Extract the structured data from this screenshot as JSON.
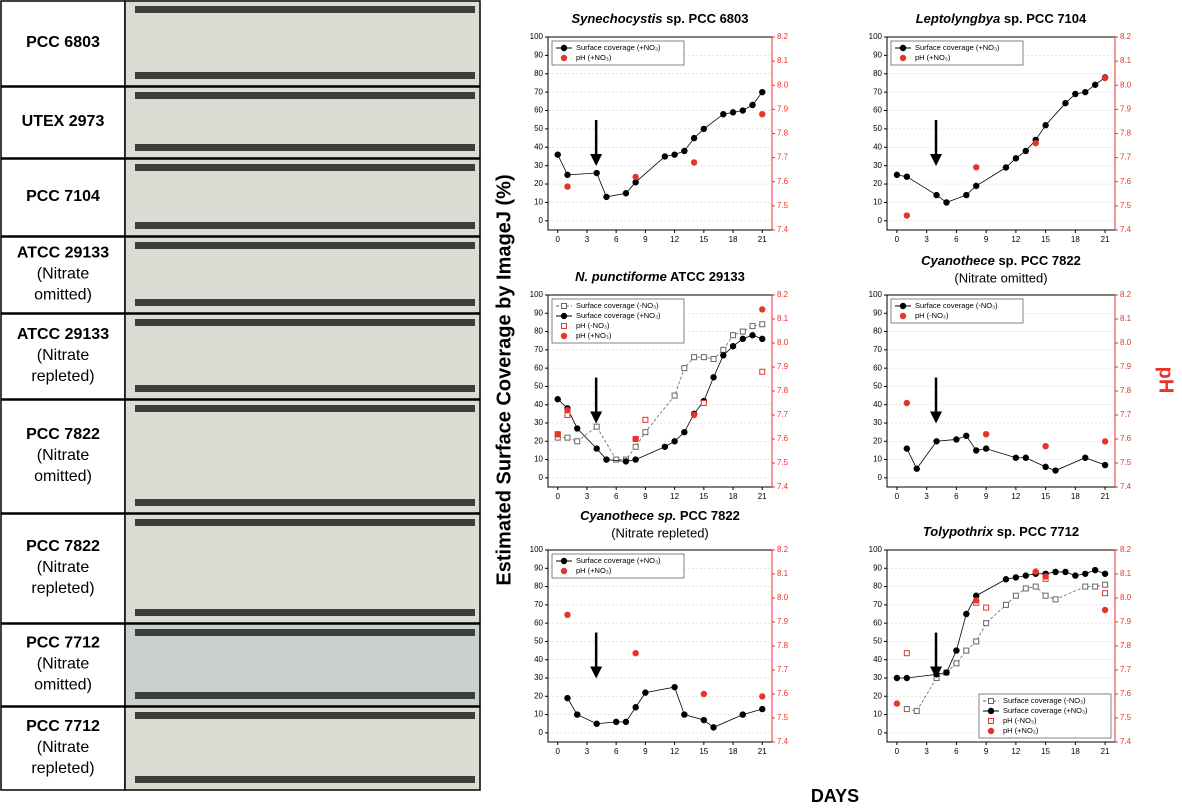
{
  "strains": [
    [
      "PCC 6803"
    ],
    [
      "UTEX 2973"
    ],
    [
      "PCC 7104"
    ],
    [
      "ATCC 29133",
      "(Nitrate",
      "omitted)"
    ],
    [
      "ATCC 29133",
      "(Nitrate",
      "repleted)"
    ],
    [
      "PCC 7822",
      "(Nitrate",
      "omitted)"
    ],
    [
      "PCC 7822",
      "(Nitrate",
      "repleted)"
    ],
    [
      "PCC 7712",
      "(Nitrate",
      "omitted)"
    ],
    [
      "PCC 7712",
      "(Nitrate",
      "repleted)"
    ]
  ],
  "y_axis_label": "Estimated Surface Coverage by ImageJ (%)",
  "y2_axis_label": "pH",
  "x_axis_label": "DAYS",
  "chart_data": [
    {
      "type": "line",
      "title": [
        "Synechocystis",
        " sp. PCC 6803"
      ],
      "legend": "upper left",
      "grid": true,
      "xlim": [
        -1,
        22
      ],
      "xticks": [
        0,
        3,
        6,
        9,
        12,
        15,
        18,
        21
      ],
      "ylim": [
        -5,
        100
      ],
      "yticks": [
        0,
        10,
        20,
        30,
        40,
        50,
        60,
        70,
        80,
        90,
        100
      ],
      "y2lim": [
        7.4,
        8.2
      ],
      "y2ticks": [
        7.4,
        7.5,
        7.6,
        7.7,
        7.8,
        7.9,
        {
          "value": 8,
          "label": "8.0"
        },
        8.1,
        8.2
      ],
      "series": [
        {
          "name": "Surface coverage (+NO₃)",
          "color": "#000000",
          "marker": "circle",
          "filled": true,
          "line": true,
          "dashed": false,
          "x": [
            0,
            1,
            4,
            5,
            7,
            8,
            11,
            12,
            13,
            14,
            15,
            17,
            18,
            19,
            20,
            21
          ],
          "values": [
            36,
            25,
            26,
            13,
            15,
            21,
            35,
            36,
            38,
            45,
            50,
            58,
            59,
            60,
            63,
            70
          ]
        },
        {
          "name": "pH (+NO₃)",
          "color": "#e8322b",
          "marker": "circle",
          "filled": true,
          "line": false,
          "dashed": false,
          "axis": "y2",
          "x": [
            1,
            8,
            14,
            21
          ],
          "values": [
            7.58,
            7.62,
            7.68,
            7.88
          ]
        }
      ]
    },
    {
      "type": "line",
      "title": [
        "Leptolyngbya",
        " sp. PCC 7104"
      ],
      "legend": "upper left",
      "grid": true,
      "xlim": [
        -1,
        22
      ],
      "xticks": [
        0,
        3,
        6,
        9,
        12,
        15,
        18,
        21
      ],
      "ylim": [
        -5,
        100
      ],
      "yticks": [
        0,
        10,
        20,
        30,
        40,
        50,
        60,
        70,
        80,
        90,
        100
      ],
      "y2lim": [
        7.4,
        8.2
      ],
      "y2ticks": [
        7.4,
        7.5,
        7.6,
        7.7,
        7.8,
        7.9,
        {
          "value": 8,
          "label": "8.0"
        },
        8.1,
        8.2
      ],
      "series": [
        {
          "name": "Surface coverage (+NO₃)",
          "color": "#000000",
          "marker": "circle",
          "filled": true,
          "line": true,
          "dashed": false,
          "x": [
            0,
            1,
            4,
            5,
            7,
            8,
            11,
            12,
            13,
            14,
            15,
            17,
            18,
            19,
            20,
            21
          ],
          "values": [
            25,
            24,
            14,
            10,
            14,
            19,
            29,
            34,
            38,
            44,
            52,
            64,
            69,
            70,
            74,
            78
          ]
        },
        {
          "name": "pH (+NO₃)",
          "color": "#e8322b",
          "marker": "circle",
          "filled": true,
          "line": false,
          "dashed": false,
          "axis": "y2",
          "x": [
            1,
            8,
            14,
            21
          ],
          "values": [
            7.46,
            7.66,
            7.76,
            8.03
          ]
        }
      ]
    },
    {
      "type": "line",
      "title": [
        "N. punctiforme",
        " ATCC 29133"
      ],
      "legend": "upper left",
      "grid": true,
      "xlim": [
        -1,
        22
      ],
      "xticks": [
        0,
        3,
        6,
        9,
        12,
        15,
        18,
        21
      ],
      "ylim": [
        -5,
        100
      ],
      "yticks": [
        0,
        10,
        20,
        30,
        40,
        50,
        60,
        70,
        80,
        90,
        100
      ],
      "y2lim": [
        7.4,
        8.2
      ],
      "y2ticks": [
        7.4,
        7.5,
        7.6,
        7.7,
        7.8,
        7.9,
        {
          "value": 8,
          "label": "8.0"
        },
        8.1,
        8.2
      ],
      "series": [
        {
          "name": "Surface coverage (-NO₃)",
          "color": "#666666",
          "marker": "square",
          "filled": false,
          "line": true,
          "dashed": true,
          "x": [
            0,
            1,
            2,
            4,
            6,
            7,
            8,
            9,
            12,
            13,
            14,
            15,
            16,
            17,
            18,
            19,
            20,
            21
          ],
          "values": [
            22,
            22,
            20,
            28,
            10,
            10,
            17,
            25,
            45,
            60,
            66,
            66,
            65,
            70,
            78,
            80,
            83,
            84
          ]
        },
        {
          "name": "Surface coverage (+NO₃)",
          "color": "#000000",
          "marker": "circle",
          "filled": true,
          "line": true,
          "dashed": false,
          "x": [
            0,
            1,
            2,
            4,
            5,
            7,
            8,
            11,
            12,
            13,
            14,
            15,
            16,
            17,
            18,
            19,
            20,
            21
          ],
          "values": [
            43,
            38,
            27,
            16,
            10,
            9,
            10,
            17,
            20,
            25,
            35,
            42,
            55,
            67,
            72,
            76,
            78,
            76
          ]
        },
        {
          "name": "pH (-NO₃)",
          "color": "#e8322b",
          "marker": "square",
          "filled": false,
          "line": false,
          "dashed": false,
          "axis": "y2",
          "x": [
            0,
            1,
            8,
            9,
            15,
            21
          ],
          "values": [
            7.62,
            7.7,
            7.6,
            7.68,
            7.75,
            7.88
          ]
        },
        {
          "name": "pH (+NO₃)",
          "color": "#e8322b",
          "marker": "circle",
          "filled": true,
          "line": false,
          "dashed": false,
          "axis": "y2",
          "x": [
            0,
            1,
            8,
            14,
            21
          ],
          "values": [
            7.62,
            7.72,
            7.6,
            7.7,
            8.14
          ]
        }
      ]
    },
    {
      "type": "line",
      "title": [
        "Cyanothece",
        " sp. PCC 7822"
      ],
      "subtitle": "(Nitrate omitted)",
      "legend": "upper left",
      "grid": true,
      "xlim": [
        -1,
        22
      ],
      "xticks": [
        0,
        3,
        6,
        9,
        12,
        15,
        18,
        21
      ],
      "ylim": [
        -5,
        100
      ],
      "yticks": [
        0,
        10,
        20,
        30,
        40,
        50,
        60,
        70,
        80,
        90,
        100
      ],
      "y2lim": [
        7.4,
        8.2
      ],
      "y2ticks": [
        7.4,
        7.5,
        7.6,
        7.7,
        7.8,
        7.9,
        {
          "value": 8,
          "label": "8.0"
        },
        8.1,
        8.2
      ],
      "series": [
        {
          "name": "Surface coverage (-NO₃)",
          "color": "#000000",
          "marker": "circle",
          "filled": true,
          "line": true,
          "dashed": false,
          "x": [
            1,
            2,
            4,
            6,
            7,
            8,
            9,
            12,
            13,
            15,
            16,
            19,
            21
          ],
          "values": [
            16,
            5,
            20,
            21,
            23,
            15,
            16,
            11,
            11,
            6,
            4,
            11,
            7
          ]
        },
        {
          "name": "pH (-NO₃)",
          "color": "#e8322b",
          "marker": "circle",
          "filled": true,
          "line": false,
          "dashed": false,
          "axis": "y2",
          "x": [
            1,
            9,
            15,
            21
          ],
          "values": [
            7.75,
            7.62,
            7.57,
            7.59
          ]
        }
      ]
    },
    {
      "type": "line",
      "title": [
        "Cyanothece sp.",
        " PCC 7822"
      ],
      "subtitle": "(Nitrate repleted)",
      "legend": "upper left",
      "grid": true,
      "xlim": [
        -1,
        22
      ],
      "xticks": [
        0,
        3,
        6,
        9,
        12,
        15,
        18,
        21
      ],
      "ylim": [
        -5,
        100
      ],
      "yticks": [
        0,
        10,
        20,
        30,
        40,
        50,
        60,
        70,
        80,
        90,
        100
      ],
      "y2lim": [
        7.4,
        8.2
      ],
      "y2ticks": [
        7.4,
        7.5,
        7.6,
        7.7,
        7.8,
        7.9,
        {
          "value": 8,
          "label": "8.0"
        },
        8.1,
        8.2
      ],
      "series": [
        {
          "name": "Surface coverage (+NO₃)",
          "color": "#000000",
          "marker": "circle",
          "filled": true,
          "line": true,
          "dashed": false,
          "x": [
            1,
            2,
            4,
            6,
            7,
            8,
            9,
            12,
            13,
            15,
            16,
            19,
            21
          ],
          "values": [
            19,
            10,
            5,
            6,
            6,
            14,
            22,
            25,
            10,
            7,
            3,
            10,
            13
          ]
        },
        {
          "name": "pH (+NO₃)",
          "color": "#e8322b",
          "marker": "circle",
          "filled": true,
          "line": false,
          "dashed": false,
          "axis": "y2",
          "x": [
            1,
            8,
            15,
            21
          ],
          "values": [
            7.93,
            7.77,
            7.6,
            7.59
          ]
        }
      ]
    },
    {
      "type": "line",
      "title": [
        "Tolypothrix",
        " sp. PCC 7712"
      ],
      "legend": "lower right",
      "grid": true,
      "xlim": [
        -1,
        22
      ],
      "xticks": [
        0,
        3,
        6,
        9,
        12,
        15,
        18,
        21
      ],
      "ylim": [
        -5,
        100
      ],
      "yticks": [
        0,
        10,
        20,
        30,
        40,
        50,
        60,
        70,
        80,
        90,
        100
      ],
      "y2lim": [
        7.4,
        8.2
      ],
      "y2ticks": [
        7.4,
        7.5,
        7.6,
        7.7,
        7.8,
        7.9,
        {
          "value": 8,
          "label": "8.0"
        },
        8.1,
        8.2
      ],
      "series": [
        {
          "name": "Surface coverage (-NO₃)",
          "color": "#666666",
          "marker": "square",
          "filled": false,
          "line": true,
          "dashed": true,
          "x": [
            1,
            2,
            4,
            5,
            6,
            7,
            8,
            9,
            11,
            12,
            13,
            14,
            15,
            16,
            19,
            20,
            21
          ],
          "values": [
            13,
            12,
            30,
            33,
            38,
            45,
            50,
            60,
            70,
            75,
            79,
            80,
            75,
            73,
            80,
            80,
            81
          ]
        },
        {
          "name": "Surface coverage (+NO₃)",
          "color": "#000000",
          "marker": "circle",
          "filled": true,
          "line": true,
          "dashed": false,
          "x": [
            0,
            1,
            4,
            5,
            6,
            7,
            8,
            11,
            12,
            13,
            14,
            15,
            16,
            17,
            18,
            19,
            20,
            21
          ],
          "values": [
            30,
            30,
            32,
            33,
            45,
            65,
            75,
            84,
            85,
            86,
            87,
            87,
            88,
            88,
            86,
            87,
            89,
            87
          ]
        },
        {
          "name": "pH (-NO₃)",
          "color": "#e8322b",
          "marker": "square",
          "filled": false,
          "line": false,
          "dashed": false,
          "axis": "y2",
          "x": [
            1,
            8,
            9,
            15,
            21
          ],
          "values": [
            7.77,
            7.98,
            7.96,
            8.08,
            8.02
          ]
        },
        {
          "name": "pH (+NO₃)",
          "color": "#e8322b",
          "marker": "circle",
          "filled": true,
          "line": false,
          "dashed": false,
          "axis": "y2",
          "x": [
            0,
            8,
            14,
            15,
            21
          ],
          "values": [
            7.56,
            7.99,
            8.11,
            8.09,
            7.95
          ]
        }
      ]
    }
  ]
}
